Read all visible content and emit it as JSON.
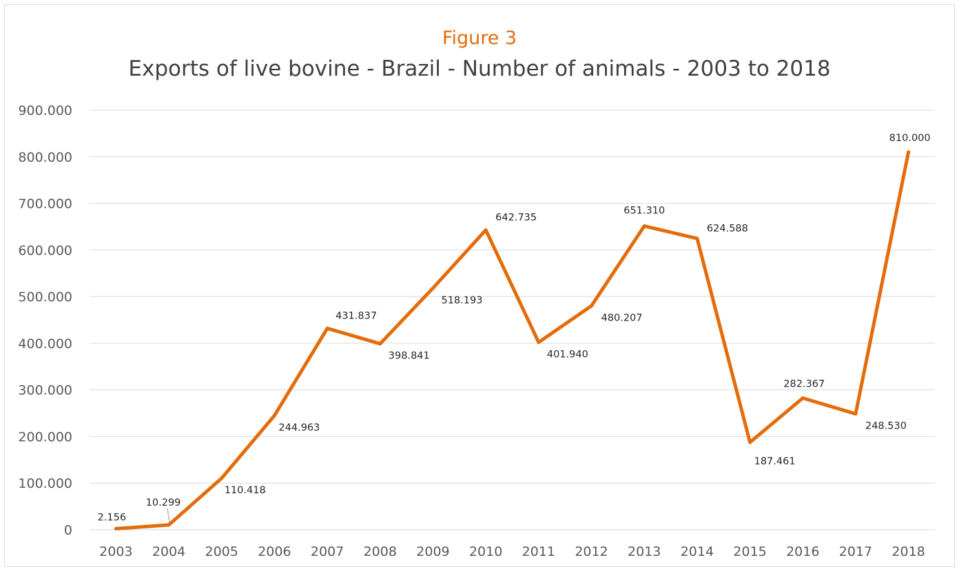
{
  "figure_label": "Figure 3",
  "chart_data": {
    "type": "line",
    "title": "Exports of live bovine - Brazil - Number of animals - 2003 to 2018",
    "categories": [
      "2003",
      "2004",
      "2005",
      "2006",
      "2007",
      "2008",
      "2009",
      "2010",
      "2011",
      "2012",
      "2013",
      "2014",
      "2015",
      "2016",
      "2017",
      "2018"
    ],
    "series": [
      {
        "values": [
          2156,
          10299,
          110418,
          244963,
          431837,
          398841,
          518193,
          642735,
          401940,
          480207,
          651310,
          624588,
          187461,
          282367,
          248530,
          810000
        ],
        "labels": [
          "2.156",
          "10.299",
          "110.418",
          "244.963",
          "431.837",
          "398.841",
          "518.193",
          "642.735",
          "401.940",
          "480.207",
          "651.310",
          "624.588",
          "187.461",
          "282.367",
          "248.530",
          "810.000"
        ],
        "color": "#e46c0a"
      }
    ],
    "ylim": [
      0,
      900000
    ],
    "yticks": [
      0,
      100000,
      200000,
      300000,
      400000,
      500000,
      600000,
      700000,
      800000,
      900000
    ],
    "ytick_labels": [
      "0",
      "100.000",
      "200.000",
      "300.000",
      "400.000",
      "500.000",
      "600.000",
      "700.000",
      "800.000",
      "900.000"
    ],
    "grid": true,
    "gridline_color": "#d9d9d9",
    "axis_text_color": "#595959"
  }
}
